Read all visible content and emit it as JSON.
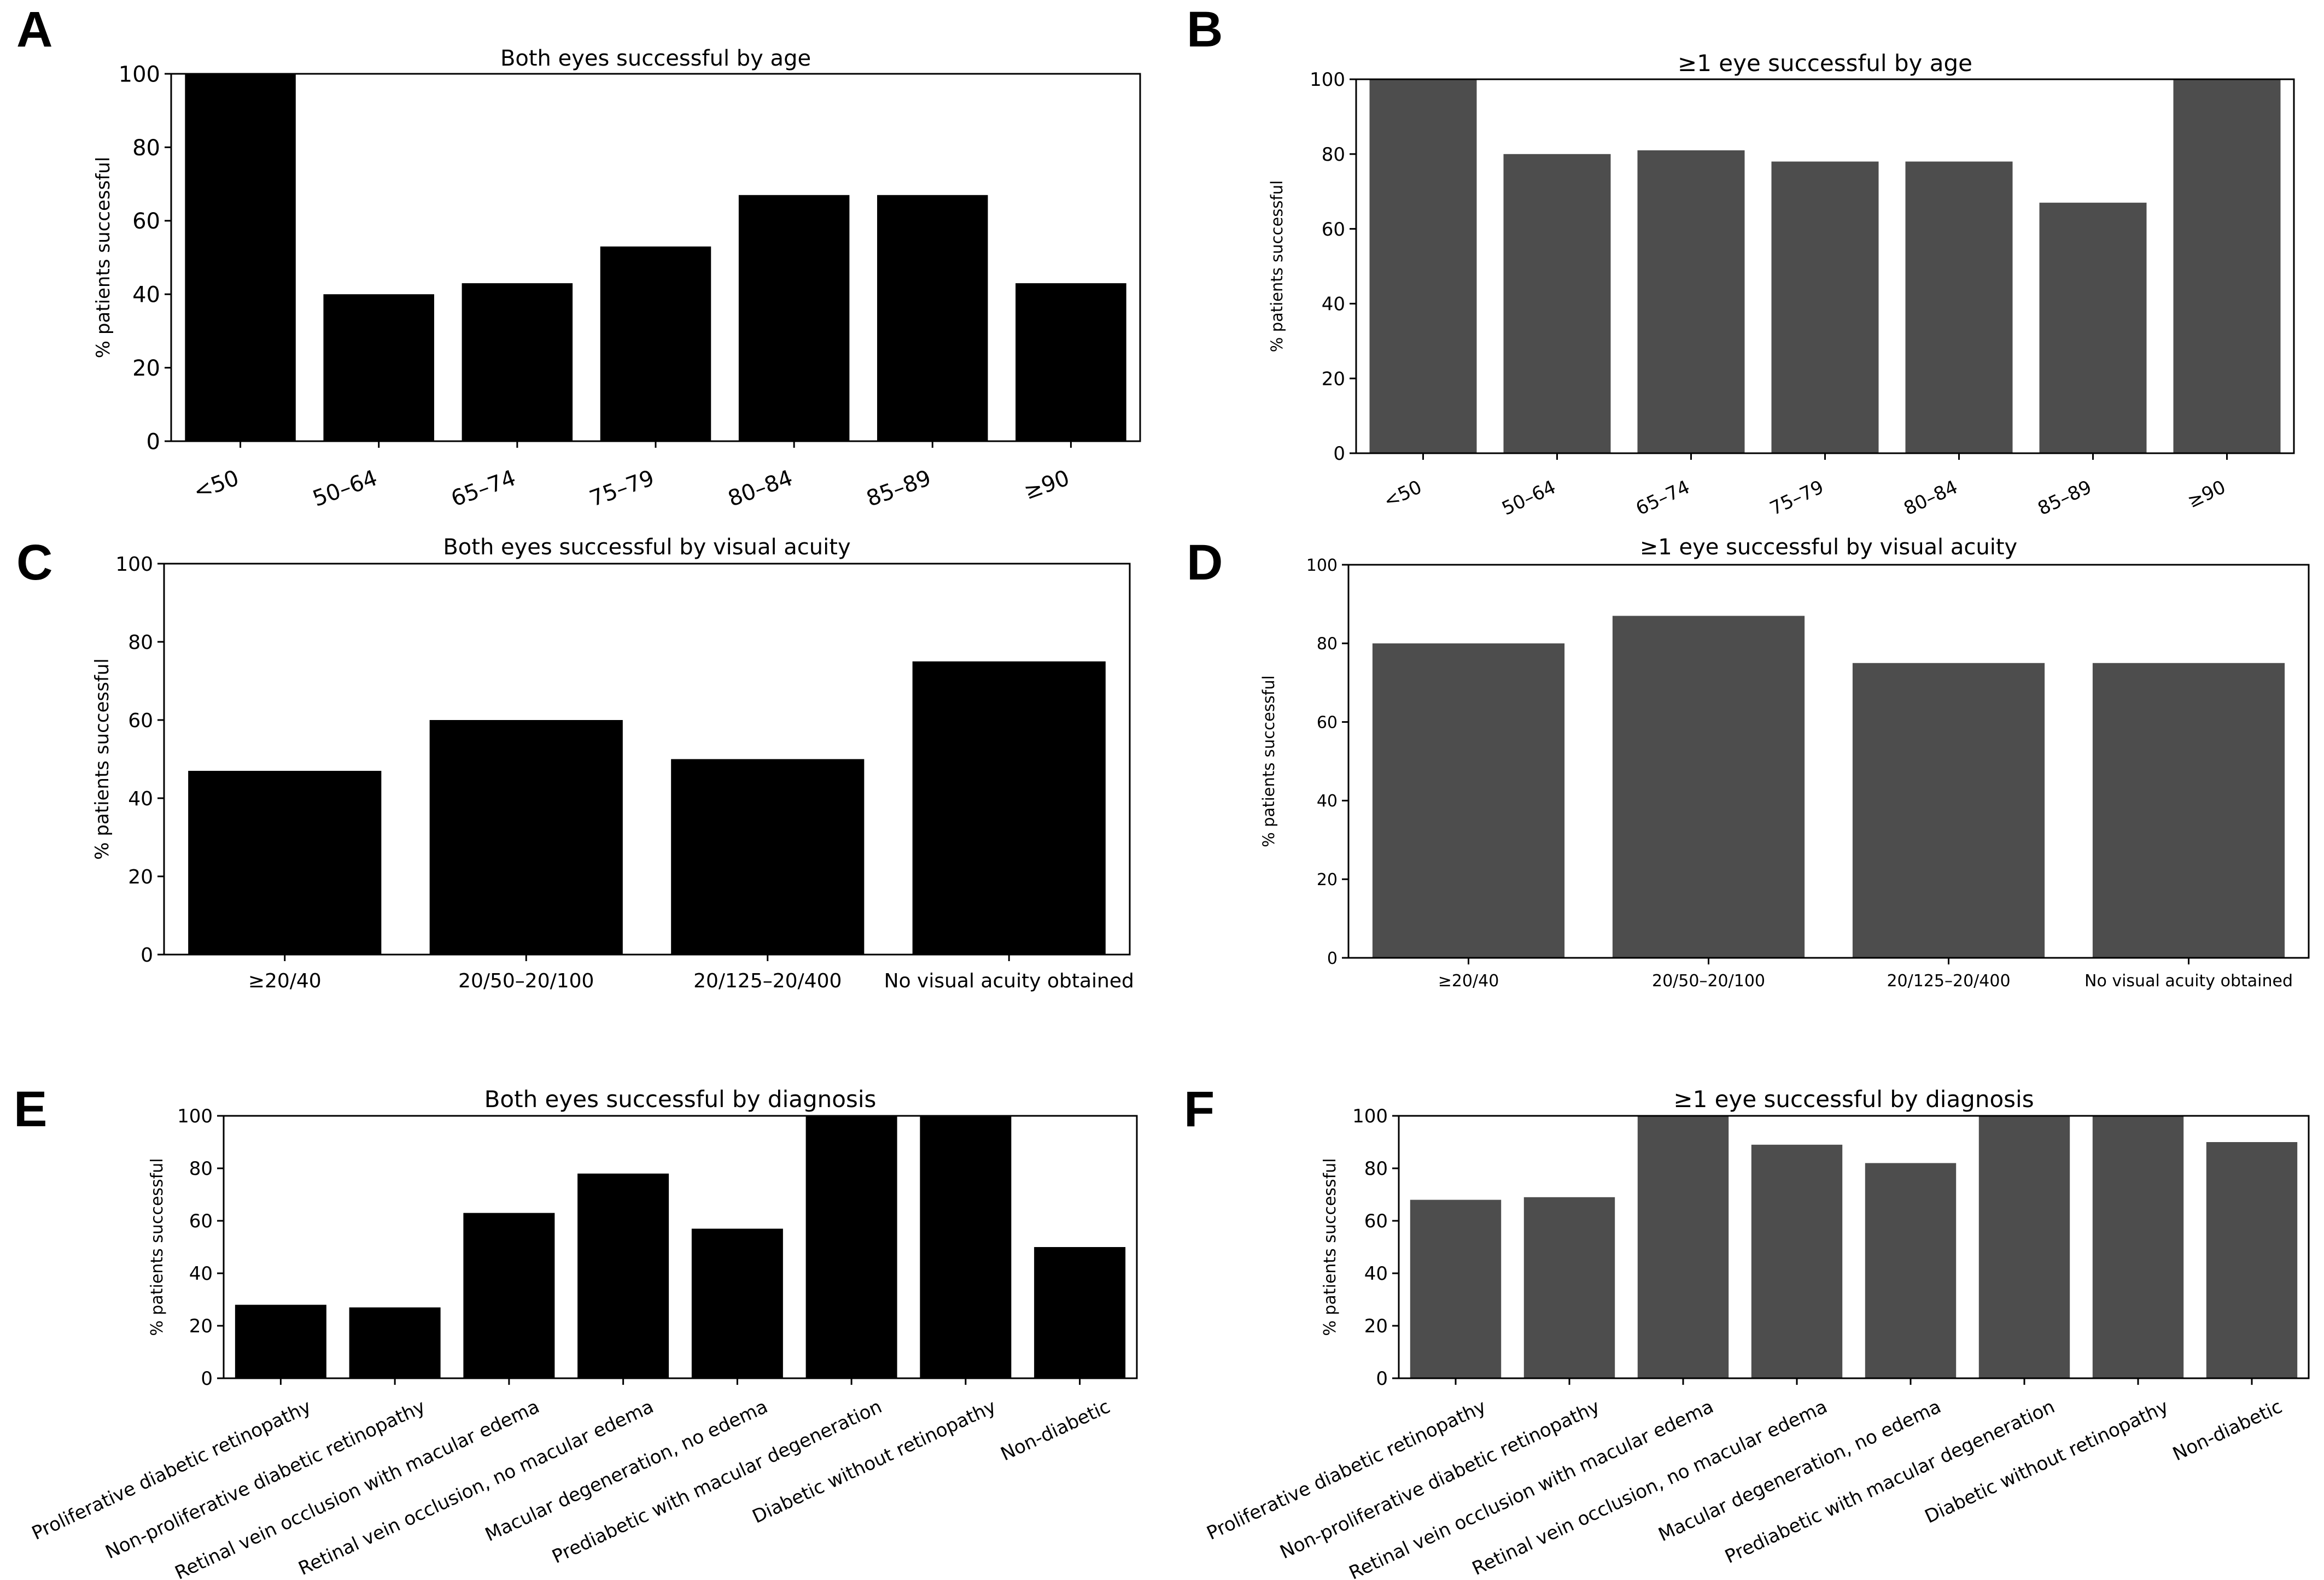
{
  "figure": {
    "panel_letters": [
      "A",
      "B",
      "C",
      "D",
      "E",
      "F"
    ]
  },
  "colors": {
    "both_eyes_bars": "#000000",
    "one_eye_bars": "#4d4d4d",
    "axes": "#000000",
    "background": "#ffffff"
  },
  "chart_data": [
    {
      "panel": "A",
      "type": "bar",
      "title": "Both eyes successful by age",
      "xlabel": "",
      "ylabel": "% patients successful",
      "categories": [
        "<50",
        "50–64",
        "65–74",
        "75–79",
        "80–84",
        "85–89",
        "≥90"
      ],
      "values": [
        100,
        40,
        43,
        53,
        67,
        67,
        43
      ],
      "ylim": [
        0,
        100
      ],
      "yticks": [
        0,
        20,
        40,
        60,
        80,
        100
      ],
      "grid": false,
      "color": "#000000"
    },
    {
      "panel": "B",
      "type": "bar",
      "title": "≥1 eye successful by age",
      "xlabel": "",
      "ylabel": "% patients successful",
      "categories": [
        "<50",
        "50–64",
        "65–74",
        "75–79",
        "80–84",
        "85–89",
        "≥90"
      ],
      "values": [
        100,
        80,
        81,
        78,
        78,
        67,
        100
      ],
      "ylim": [
        0,
        100
      ],
      "yticks": [
        0,
        20,
        40,
        60,
        80,
        100
      ],
      "grid": false,
      "color": "#4d4d4d"
    },
    {
      "panel": "C",
      "type": "bar",
      "title": "Both eyes successful by visual acuity",
      "xlabel": "",
      "ylabel": "% patients successful",
      "categories": [
        "≥20/40",
        "20/50–20/100",
        "20/125–20/400",
        "No visual acuity obtained"
      ],
      "values": [
        47,
        60,
        50,
        75
      ],
      "ylim": [
        0,
        100
      ],
      "yticks": [
        0,
        20,
        40,
        60,
        80,
        100
      ],
      "grid": false,
      "color": "#000000"
    },
    {
      "panel": "D",
      "type": "bar",
      "title": "≥1 eye successful by visual acuity",
      "xlabel": "",
      "ylabel": "% patients successful",
      "categories": [
        "≥20/40",
        "20/50–20/100",
        "20/125–20/400",
        "No visual acuity obtained"
      ],
      "values": [
        80,
        87,
        75,
        75
      ],
      "ylim": [
        0,
        100
      ],
      "yticks": [
        0,
        20,
        40,
        60,
        80,
        100
      ],
      "grid": false,
      "color": "#4d4d4d"
    },
    {
      "panel": "E",
      "type": "bar",
      "title": "Both eyes successful by diagnosis",
      "xlabel": "",
      "ylabel": "% patients successful",
      "categories": [
        "Proliferative diabetic retinopathy",
        "Non-proliferative diabetic retinopathy",
        "Retinal vein occlusion with macular edema",
        "Retinal vein occlusion, no macular edema",
        "Macular degeneration, no edema",
        "Prediabetic with macular degeneration",
        "Diabetic without retinopathy",
        "Non-diabetic"
      ],
      "values": [
        28,
        27,
        63,
        78,
        57,
        100,
        100,
        50
      ],
      "ylim": [
        0,
        100
      ],
      "yticks": [
        0,
        20,
        40,
        60,
        80,
        100
      ],
      "grid": false,
      "color": "#000000"
    },
    {
      "panel": "F",
      "type": "bar",
      "title": "≥1 eye successful by diagnosis",
      "xlabel": "",
      "ylabel": "% patients successful",
      "categories": [
        "Proliferative diabetic retinopathy",
        "Non-proliferative diabetic retinopathy",
        "Retinal vein occlusion with macular edema",
        "Retinal vein occlusion, no macular edema",
        "Macular degeneration, no edema",
        "Prediabetic with macular degeneration",
        "Diabetic without retinopathy",
        "Non-diabetic"
      ],
      "values": [
        68,
        69,
        100,
        89,
        82,
        100,
        100,
        90
      ],
      "ylim": [
        0,
        100
      ],
      "yticks": [
        0,
        20,
        40,
        60,
        80,
        100
      ],
      "grid": false,
      "color": "#4d4d4d"
    }
  ]
}
